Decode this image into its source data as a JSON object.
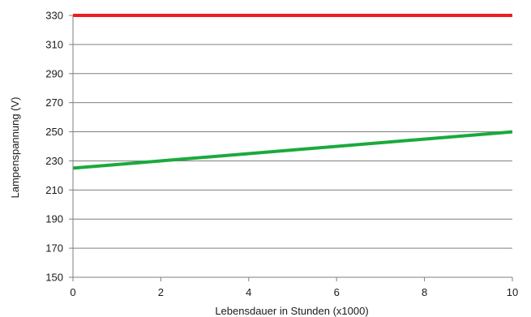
{
  "chart_data": {
    "type": "line",
    "xlabel": "Lebensdauer in Stunden (x1000)",
    "ylabel": "Lampenspannung (V)",
    "xlim": [
      0,
      10
    ],
    "ylim": [
      150,
      330
    ],
    "x_ticks": [
      0,
      2,
      4,
      6,
      8,
      10
    ],
    "y_ticks": [
      150,
      170,
      190,
      210,
      230,
      250,
      270,
      290,
      310,
      330
    ],
    "grid": "horizontal",
    "legend": "none",
    "series": [
      {
        "color": "#ee1c25",
        "x": [
          0,
          10
        ],
        "y": [
          330,
          330
        ]
      },
      {
        "color": "#1aaa3c",
        "x": [
          0,
          10
        ],
        "y": [
          225,
          250
        ]
      }
    ]
  }
}
